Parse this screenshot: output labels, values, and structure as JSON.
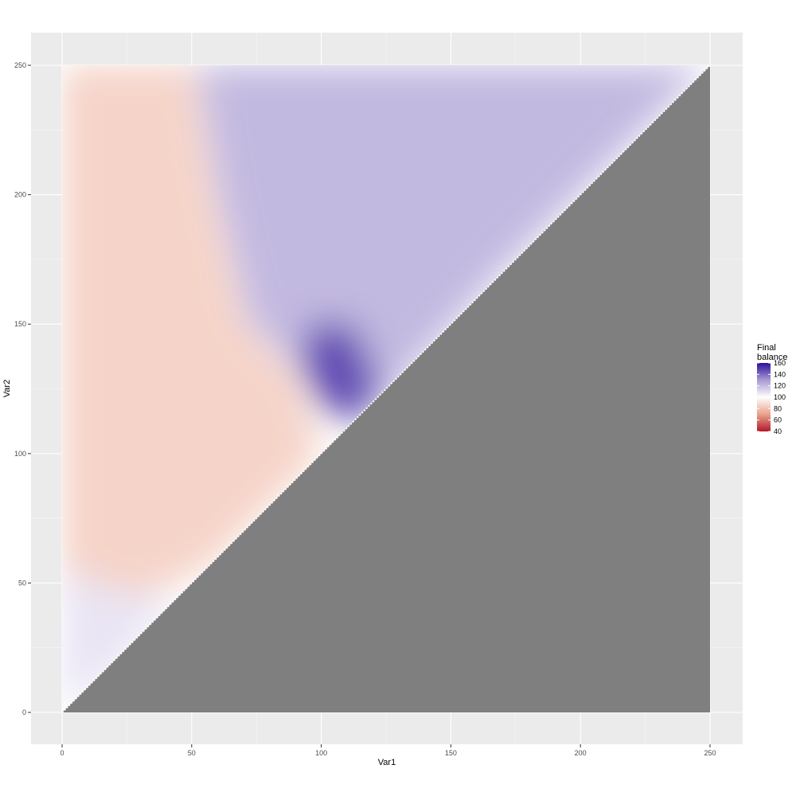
{
  "chart_data": {
    "type": "heatmap",
    "xlabel": "Var1",
    "ylabel": "Var2",
    "xlim": [
      0,
      250
    ],
    "ylim": [
      0,
      250
    ],
    "x_ticks": [
      0,
      50,
      100,
      150,
      200,
      250
    ],
    "y_ticks": [
      0,
      50,
      100,
      150,
      200,
      250
    ],
    "grid": true,
    "region_shown": "Var2 >= Var1 (lower-right triangle is grey / no data)",
    "masked_color": "#7f7f7f",
    "panel_background": "#ebebeb",
    "contour_color": "#a6a6a6",
    "legend": {
      "title_lines": [
        "Final",
        "balance"
      ],
      "position": "right",
      "ticks": [
        160,
        140,
        120,
        100,
        80,
        60,
        40
      ],
      "range": [
        40,
        160
      ],
      "gradient": [
        {
          "value": 40,
          "color": "#b2182b"
        },
        {
          "value": 70,
          "color": "#e9a28b"
        },
        {
          "value": 100,
          "color": "#ffffff"
        },
        {
          "value": 130,
          "color": "#a89ad2"
        },
        {
          "value": 160,
          "color": "#2d0f9b"
        }
      ]
    },
    "approx_regions": [
      {
        "description": "upper-left band, x 0-70, y 60-250",
        "value": 85
      },
      {
        "description": "lower-left corner, x 0-35, y 0-55",
        "value": 108
      },
      {
        "description": "upper-right band, x 70-250, y 150-250",
        "value": 122
      },
      {
        "description": "peak, x 95-120, y 115-150",
        "value": 148
      }
    ]
  }
}
